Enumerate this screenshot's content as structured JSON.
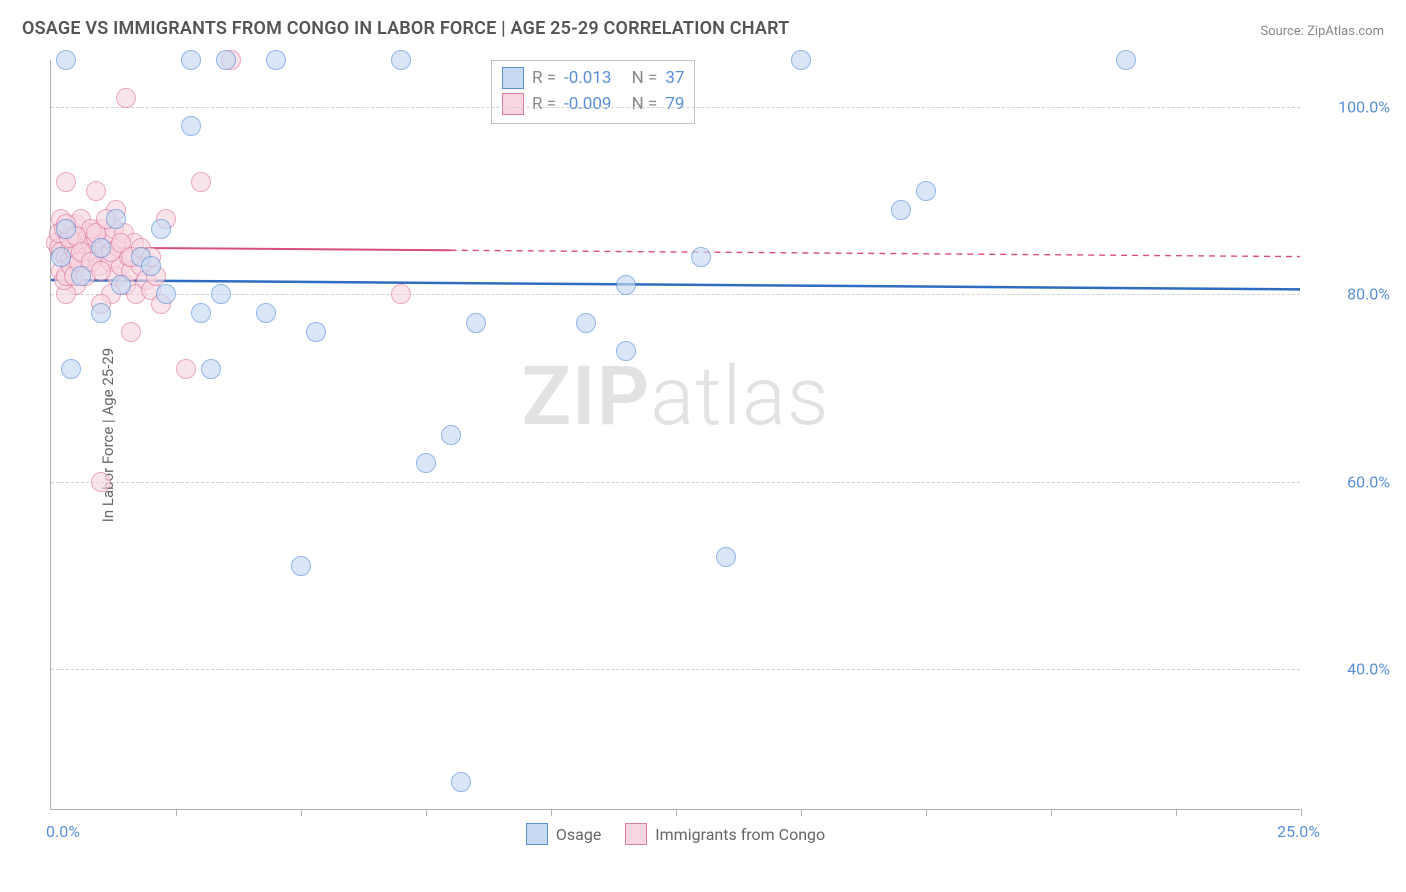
{
  "chart": {
    "type": "scatter",
    "title": "OSAGE VS IMMIGRANTS FROM CONGO IN LABOR FORCE | AGE 25-29 CORRELATION CHART",
    "source_text": "Source: ZipAtlas.com",
    "y_axis_title": "In Labor Force | Age 25-29",
    "background_color": "#ffffff",
    "grid_color": "#d0d0d0",
    "axis_color": "#b0b0b0",
    "title_color": "#555555",
    "title_fontsize": 18,
    "label_color": "#5a8fd8",
    "label_fontsize": 16,
    "xlim": [
      0,
      25
    ],
    "x_origin_label": "0.0%",
    "x_end_label": "25.0%",
    "x_ticks": [
      2.5,
      5,
      7.5,
      10,
      12.5,
      15,
      17.5,
      20,
      22.5,
      25
    ],
    "ylim": [
      25,
      105
    ],
    "y_gridlines": [
      40,
      60,
      80,
      100
    ],
    "y_labels": [
      "40.0%",
      "60.0%",
      "80.0%",
      "100.0%"
    ],
    "marker_radius": 10,
    "marker_stroke_width": 1.5,
    "series": [
      {
        "name": "Osage",
        "fill_color": "#c7daf3",
        "stroke_color": "#5a8fd8",
        "fill_opacity": 0.65,
        "trend_color": "#2d6cc0",
        "trend_width": 2.5,
        "trend_y_start": 81.5,
        "trend_y_end": 80.5,
        "trend_dash_split_x": 25,
        "R": "-0.013",
        "N": "37",
        "points": [
          {
            "x": 0.3,
            "y": 105
          },
          {
            "x": 2.8,
            "y": 105
          },
          {
            "x": 3.5,
            "y": 105
          },
          {
            "x": 4.5,
            "y": 105
          },
          {
            "x": 7.0,
            "y": 105
          },
          {
            "x": 15.0,
            "y": 105
          },
          {
            "x": 21.5,
            "y": 105
          },
          {
            "x": 2.8,
            "y": 98
          },
          {
            "x": 17.5,
            "y": 91
          },
          {
            "x": 17.0,
            "y": 89
          },
          {
            "x": 2.2,
            "y": 87
          },
          {
            "x": 0.3,
            "y": 87
          },
          {
            "x": 1.3,
            "y": 88
          },
          {
            "x": 13.0,
            "y": 84
          },
          {
            "x": 11.5,
            "y": 81
          },
          {
            "x": 1.4,
            "y": 81
          },
          {
            "x": 2.3,
            "y": 80
          },
          {
            "x": 3.4,
            "y": 80
          },
          {
            "x": 1.0,
            "y": 78
          },
          {
            "x": 3.0,
            "y": 78
          },
          {
            "x": 4.3,
            "y": 78
          },
          {
            "x": 8.5,
            "y": 77
          },
          {
            "x": 10.7,
            "y": 77
          },
          {
            "x": 5.3,
            "y": 76
          },
          {
            "x": 3.2,
            "y": 72
          },
          {
            "x": 0.4,
            "y": 72
          },
          {
            "x": 11.5,
            "y": 74
          },
          {
            "x": 8.0,
            "y": 65
          },
          {
            "x": 7.5,
            "y": 62
          },
          {
            "x": 13.5,
            "y": 52
          },
          {
            "x": 5.0,
            "y": 51
          },
          {
            "x": 8.2,
            "y": 28
          },
          {
            "x": 1.0,
            "y": 85
          },
          {
            "x": 0.2,
            "y": 84
          },
          {
            "x": 0.6,
            "y": 82
          },
          {
            "x": 1.8,
            "y": 84
          },
          {
            "x": 2.0,
            "y": 83
          }
        ]
      },
      {
        "name": "Immigrants from Congo",
        "fill_color": "#f7d6e0",
        "stroke_color": "#e07ba0",
        "fill_opacity": 0.65,
        "trend_color": "#d94d82",
        "trend_width": 2,
        "trend_y_start": 85.0,
        "trend_y_end": 84.0,
        "trend_dash_split_x": 8,
        "R": "-0.009",
        "N": "79",
        "points": [
          {
            "x": 1.5,
            "y": 101
          },
          {
            "x": 3.6,
            "y": 105
          },
          {
            "x": 0.3,
            "y": 92
          },
          {
            "x": 0.9,
            "y": 91
          },
          {
            "x": 3.0,
            "y": 92
          },
          {
            "x": 2.3,
            "y": 88
          },
          {
            "x": 1.3,
            "y": 89
          },
          {
            "x": 0.2,
            "y": 88
          },
          {
            "x": 0.4,
            "y": 86
          },
          {
            "x": 0.1,
            "y": 85.5
          },
          {
            "x": 0.15,
            "y": 85
          },
          {
            "x": 0.2,
            "y": 84.5
          },
          {
            "x": 0.3,
            "y": 84
          },
          {
            "x": 0.35,
            "y": 83.5
          },
          {
            "x": 0.4,
            "y": 85.2
          },
          {
            "x": 0.45,
            "y": 84.8
          },
          {
            "x": 0.5,
            "y": 84.2
          },
          {
            "x": 0.55,
            "y": 85.8
          },
          {
            "x": 0.6,
            "y": 86
          },
          {
            "x": 0.65,
            "y": 85
          },
          {
            "x": 0.7,
            "y": 84
          },
          {
            "x": 0.75,
            "y": 86.5
          },
          {
            "x": 0.8,
            "y": 85.5
          },
          {
            "x": 0.85,
            "y": 84.5
          },
          {
            "x": 0.9,
            "y": 86
          },
          {
            "x": 0.95,
            "y": 83
          },
          {
            "x": 1.0,
            "y": 87
          },
          {
            "x": 1.05,
            "y": 85
          },
          {
            "x": 1.1,
            "y": 84
          },
          {
            "x": 1.15,
            "y": 86
          },
          {
            "x": 1.2,
            "y": 83.5
          },
          {
            "x": 1.25,
            "y": 87
          },
          {
            "x": 1.3,
            "y": 82
          },
          {
            "x": 1.35,
            "y": 85
          },
          {
            "x": 1.4,
            "y": 83
          },
          {
            "x": 1.45,
            "y": 86.5
          },
          {
            "x": 1.5,
            "y": 81
          },
          {
            "x": 1.55,
            "y": 84
          },
          {
            "x": 1.6,
            "y": 82.5
          },
          {
            "x": 1.65,
            "y": 85.5
          },
          {
            "x": 1.7,
            "y": 80
          },
          {
            "x": 1.8,
            "y": 83
          },
          {
            "x": 1.9,
            "y": 81.5
          },
          {
            "x": 2.0,
            "y": 80.5
          },
          {
            "x": 2.1,
            "y": 82
          },
          {
            "x": 1.2,
            "y": 80
          },
          {
            "x": 2.2,
            "y": 79
          },
          {
            "x": 1.0,
            "y": 79
          },
          {
            "x": 0.5,
            "y": 81
          },
          {
            "x": 0.3,
            "y": 80
          },
          {
            "x": 7.0,
            "y": 80
          },
          {
            "x": 1.6,
            "y": 76
          },
          {
            "x": 2.7,
            "y": 72
          },
          {
            "x": 1.0,
            "y": 60
          },
          {
            "x": 0.2,
            "y": 82.5
          },
          {
            "x": 0.25,
            "y": 81.5
          },
          {
            "x": 0.3,
            "y": 82
          },
          {
            "x": 0.5,
            "y": 87.5
          },
          {
            "x": 0.6,
            "y": 88
          },
          {
            "x": 0.8,
            "y": 87
          },
          {
            "x": 0.9,
            "y": 86.5
          },
          {
            "x": 1.1,
            "y": 88
          },
          {
            "x": 0.4,
            "y": 83
          },
          {
            "x": 0.45,
            "y": 82
          },
          {
            "x": 0.55,
            "y": 83.5
          },
          {
            "x": 0.7,
            "y": 82
          },
          {
            "x": 0.15,
            "y": 86.5
          },
          {
            "x": 0.25,
            "y": 87
          },
          {
            "x": 0.35,
            "y": 86
          },
          {
            "x": 0.3,
            "y": 87.5
          },
          {
            "x": 0.5,
            "y": 86.2
          },
          {
            "x": 0.6,
            "y": 84.5
          },
          {
            "x": 0.8,
            "y": 83.5
          },
          {
            "x": 1.0,
            "y": 82.5
          },
          {
            "x": 1.2,
            "y": 84.5
          },
          {
            "x": 1.4,
            "y": 85.5
          },
          {
            "x": 1.6,
            "y": 84
          },
          {
            "x": 1.8,
            "y": 85
          },
          {
            "x": 2.0,
            "y": 84
          }
        ]
      }
    ],
    "watermark": {
      "bold": "ZIP",
      "light": "atlas"
    },
    "stats_legend": {
      "R_label": "R =",
      "N_label": "N ="
    }
  }
}
